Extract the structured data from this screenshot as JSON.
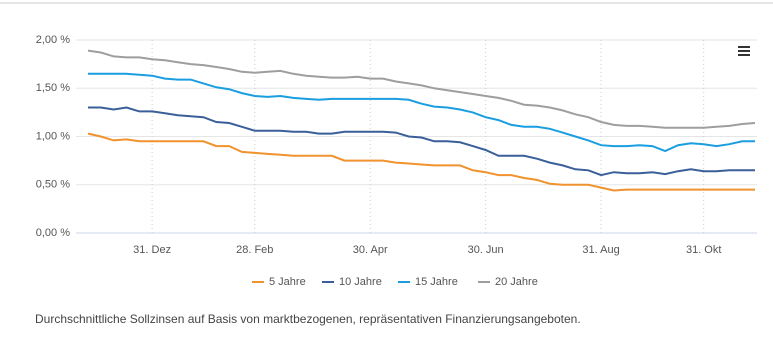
{
  "chart_data": {
    "type": "line",
    "caption": "Durchschnittliche Sollzinsen auf Basis von marktbezogenen, repräsentativen Finanzierungsangeboten.",
    "categories": [
      null,
      null,
      null,
      null,
      null,
      "31. Dez",
      null,
      null,
      null,
      null,
      null,
      null,
      null,
      "28. Feb",
      null,
      null,
      null,
      null,
      null,
      null,
      null,
      null,
      "30. Apr",
      null,
      null,
      null,
      null,
      null,
      null,
      null,
      null,
      "30. Jun",
      null,
      null,
      null,
      null,
      null,
      null,
      null,
      null,
      "31. Aug",
      null,
      null,
      null,
      null,
      null,
      null,
      null,
      "31. Okt",
      null,
      null,
      null,
      null
    ],
    "series": [
      {
        "name": "5 Jahre",
        "color": "#f0922e",
        "values": [
          1.03,
          1.0,
          0.96,
          0.97,
          0.95,
          0.95,
          0.95,
          0.95,
          0.95,
          0.95,
          0.9,
          0.9,
          0.84,
          0.83,
          0.82,
          0.81,
          0.8,
          0.8,
          0.8,
          0.8,
          0.75,
          0.75,
          0.75,
          0.75,
          0.73,
          0.72,
          0.71,
          0.7,
          0.7,
          0.7,
          0.65,
          0.63,
          0.6,
          0.6,
          0.57,
          0.55,
          0.51,
          0.5,
          0.5,
          0.5,
          0.47,
          0.44,
          0.45,
          0.45,
          0.45,
          0.45,
          0.45,
          0.45,
          0.45,
          0.45,
          0.45,
          0.45,
          0.45
        ]
      },
      {
        "name": "10 Jahre",
        "color": "#3a5f9a",
        "values": [
          1.3,
          1.3,
          1.28,
          1.3,
          1.26,
          1.26,
          1.24,
          1.22,
          1.21,
          1.2,
          1.15,
          1.14,
          1.1,
          1.06,
          1.06,
          1.06,
          1.05,
          1.05,
          1.03,
          1.03,
          1.05,
          1.05,
          1.05,
          1.05,
          1.04,
          1.0,
          0.99,
          0.95,
          0.95,
          0.94,
          0.9,
          0.86,
          0.8,
          0.8,
          0.8,
          0.77,
          0.73,
          0.7,
          0.66,
          0.65,
          0.6,
          0.63,
          0.62,
          0.62,
          0.63,
          0.61,
          0.64,
          0.66,
          0.64,
          0.64,
          0.65,
          0.65,
          0.65
        ]
      },
      {
        "name": "15 Jahre",
        "color": "#1a9ee0",
        "values": [
          1.65,
          1.65,
          1.65,
          1.65,
          1.64,
          1.63,
          1.6,
          1.59,
          1.59,
          1.55,
          1.51,
          1.49,
          1.45,
          1.42,
          1.41,
          1.42,
          1.4,
          1.39,
          1.38,
          1.39,
          1.39,
          1.39,
          1.39,
          1.39,
          1.39,
          1.38,
          1.34,
          1.31,
          1.3,
          1.28,
          1.25,
          1.2,
          1.17,
          1.12,
          1.1,
          1.1,
          1.08,
          1.04,
          1.0,
          0.96,
          0.91,
          0.9,
          0.9,
          0.91,
          0.9,
          0.85,
          0.91,
          0.93,
          0.92,
          0.9,
          0.92,
          0.95,
          0.95
        ]
      },
      {
        "name": "20 Jahre",
        "color": "#9e9e9e",
        "values": [
          1.89,
          1.87,
          1.83,
          1.82,
          1.82,
          1.8,
          1.79,
          1.77,
          1.75,
          1.74,
          1.72,
          1.7,
          1.67,
          1.66,
          1.67,
          1.68,
          1.65,
          1.63,
          1.62,
          1.61,
          1.61,
          1.62,
          1.6,
          1.6,
          1.57,
          1.55,
          1.53,
          1.5,
          1.48,
          1.46,
          1.44,
          1.42,
          1.4,
          1.37,
          1.33,
          1.32,
          1.3,
          1.27,
          1.23,
          1.2,
          1.15,
          1.12,
          1.11,
          1.11,
          1.1,
          1.09,
          1.09,
          1.09,
          1.09,
          1.1,
          1.11,
          1.13,
          1.14
        ]
      }
    ],
    "ylim": [
      0,
      2
    ],
    "yticks": [
      {
        "value": 0,
        "label": "0,00 %"
      },
      {
        "value": 0.5,
        "label": "0,50 %"
      },
      {
        "value": 1,
        "label": "1,00 %"
      },
      {
        "value": 1.5,
        "label": "1,50 %"
      },
      {
        "value": 2,
        "label": "2,00 %"
      }
    ],
    "grid": true
  }
}
